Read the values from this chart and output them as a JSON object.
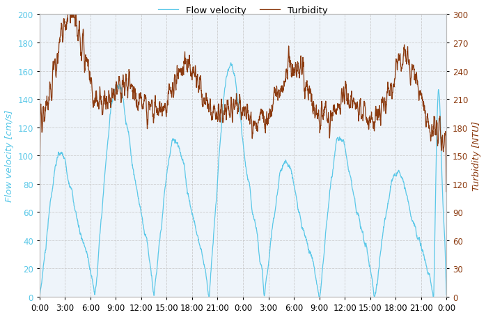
{
  "legend_flow": "Flow velocity",
  "legend_turbidity": "Turbidity",
  "ylabel_left": "Flow velocity [cm/s]",
  "ylabel_right": "Turbidity [NTU]",
  "flow_color": "#5BC8E8",
  "turbidity_color": "#8B3A0F",
  "ylim_left": [
    0,
    200
  ],
  "ylim_right": [
    0,
    300
  ],
  "yticks_left": [
    0,
    20,
    40,
    60,
    80,
    100,
    120,
    140,
    160,
    180,
    200
  ],
  "yticks_right": [
    0,
    30,
    60,
    90,
    120,
    150,
    180,
    210,
    240,
    270,
    300
  ],
  "background_color": "#FFFFFF",
  "grid_color": "#C8C8C8",
  "x_tick_labels": [
    "0:00",
    "3:00",
    "6:00",
    "9:00",
    "12:00",
    "15:00",
    "18:00",
    "21:00",
    "0:00",
    "3:00",
    "6:00",
    "9:00",
    "12:00",
    "15:00",
    "18:00",
    "21:00",
    "0:00"
  ],
  "n_points": 2000,
  "figsize": [
    6.98,
    4.56
  ],
  "dpi": 100
}
